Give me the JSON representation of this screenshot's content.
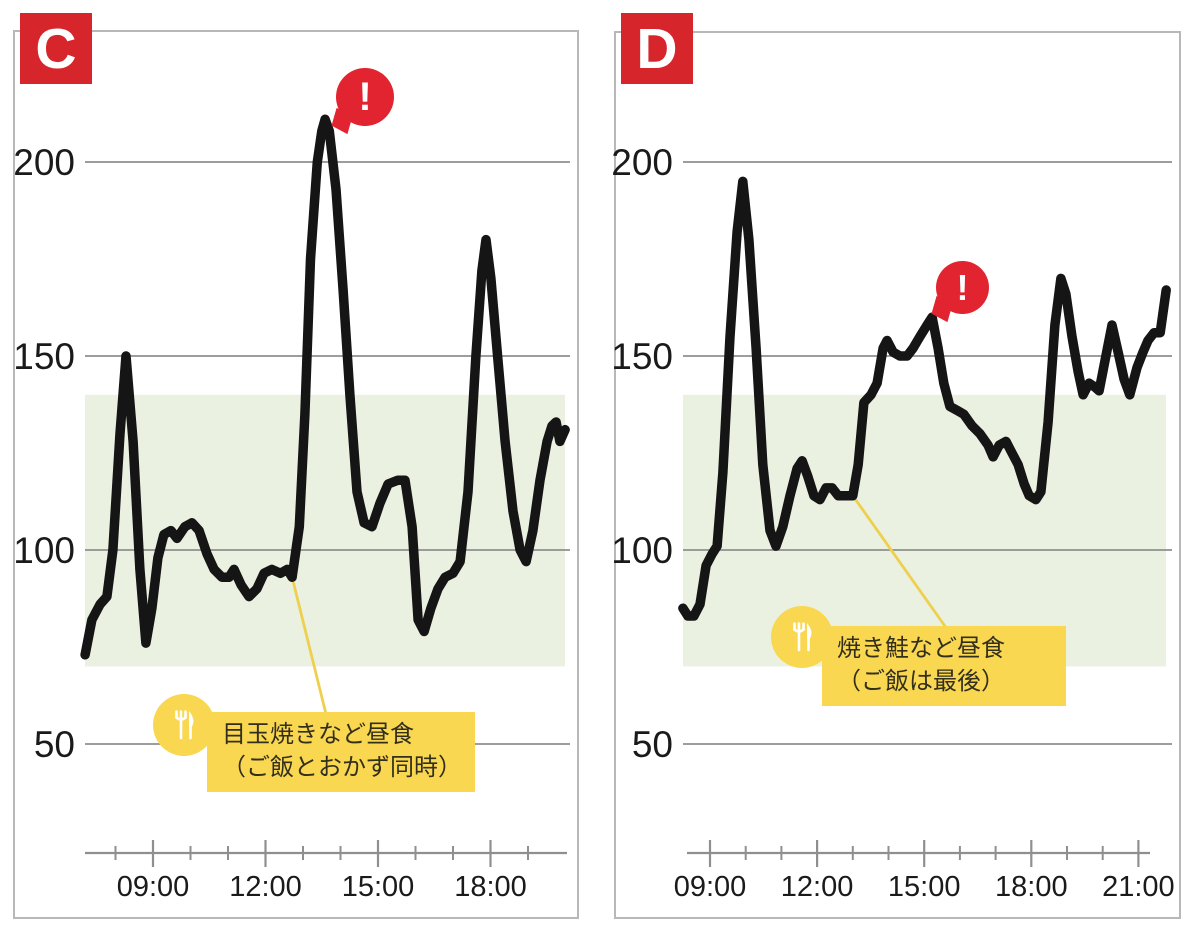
{
  "charts": [
    {
      "badge": "C",
      "alert_glyph": "!",
      "annotation": {
        "icon": "fork-knife-icon",
        "line1": "目玉焼きなど昼食",
        "line2": "（ご飯とおかず同時）"
      }
    },
    {
      "badge": "D",
      "alert_glyph": "!",
      "annotation": {
        "icon": "fork-knife-icon",
        "line1": "焼き鮭など昼食",
        "line2": "（ご飯は最後）"
      }
    }
  ],
  "colors": {
    "badge_red": "#d7252c",
    "alert_red": "#e12430",
    "line": "#151515",
    "grid": "#8f8f8f",
    "axis": "#8f8f8f",
    "band_green": "#eaf1e1",
    "annotation_yellow": "#f9d750",
    "connector_yellow": "#eed04e",
    "panel_border": "#b8b8b8",
    "text": "#1a1a1a"
  },
  "chart_data": [
    {
      "type": "line",
      "title": "C",
      "xlabel": "",
      "ylabel": "",
      "grid": "horizontal",
      "legend": "none",
      "y_ticks": [
        200,
        150,
        100,
        50
      ],
      "ylim": [
        38,
        222
      ],
      "xlim": [
        7.2,
        20.0
      ],
      "x_tick_labels": [
        "09:00",
        "12:00",
        "15:00",
        "18:00"
      ],
      "x_major_ticks": [
        9,
        12,
        15,
        18
      ],
      "x_minor_ticks": [
        8,
        10,
        11,
        13,
        14,
        16,
        17,
        19
      ],
      "normal_band": [
        70,
        140
      ],
      "series": [
        {
          "name": "glucose",
          "points": [
            [
              7.19,
              73
            ],
            [
              7.37,
              82
            ],
            [
              7.59,
              86
            ],
            [
              7.77,
              88
            ],
            [
              7.93,
              100
            ],
            [
              8.12,
              130
            ],
            [
              8.28,
              150
            ],
            [
              8.47,
              128
            ],
            [
              8.65,
              95
            ],
            [
              8.81,
              76
            ],
            [
              8.97,
              85
            ],
            [
              9.13,
              98
            ],
            [
              9.29,
              104
            ],
            [
              9.48,
              105
            ],
            [
              9.64,
              103
            ],
            [
              9.85,
              106
            ],
            [
              10.04,
              107
            ],
            [
              10.23,
              105
            ],
            [
              10.44,
              99
            ],
            [
              10.63,
              95
            ],
            [
              10.84,
              93
            ],
            [
              11.03,
              93
            ],
            [
              11.16,
              95
            ],
            [
              11.35,
              91
            ],
            [
              11.56,
              88
            ],
            [
              11.77,
              90
            ],
            [
              11.96,
              94
            ],
            [
              12.17,
              95
            ],
            [
              12.4,
              94
            ],
            [
              12.58,
              95
            ],
            [
              12.71,
              93
            ],
            [
              12.9,
              106
            ],
            [
              13.05,
              135
            ],
            [
              13.2,
              175
            ],
            [
              13.38,
              200
            ],
            [
              13.5,
              208
            ],
            [
              13.59,
              211
            ],
            [
              13.7,
              208
            ],
            [
              13.88,
              193
            ],
            [
              14.07,
              167
            ],
            [
              14.25,
              140
            ],
            [
              14.44,
              115
            ],
            [
              14.63,
              107
            ],
            [
              14.84,
              106
            ],
            [
              15.05,
              112
            ],
            [
              15.27,
              117
            ],
            [
              15.53,
              118
            ],
            [
              15.72,
              118
            ],
            [
              15.91,
              106
            ],
            [
              16.07,
              82
            ],
            [
              16.23,
              79
            ],
            [
              16.41,
              85
            ],
            [
              16.6,
              90
            ],
            [
              16.79,
              93
            ],
            [
              17.0,
              94
            ],
            [
              17.19,
              97
            ],
            [
              17.4,
              115
            ],
            [
              17.61,
              150
            ],
            [
              17.77,
              172
            ],
            [
              17.88,
              180
            ],
            [
              18.01,
              170
            ],
            [
              18.17,
              152
            ],
            [
              18.39,
              128
            ],
            [
              18.6,
              110
            ],
            [
              18.79,
              100
            ],
            [
              18.95,
              97
            ],
            [
              19.13,
              105
            ],
            [
              19.32,
              118
            ],
            [
              19.51,
              128
            ],
            [
              19.64,
              132
            ],
            [
              19.75,
              133
            ],
            [
              19.85,
              128
            ],
            [
              19.99,
              131
            ]
          ]
        }
      ],
      "annotations": [
        {
          "type": "meal",
          "text": "目玉焼きなど昼食（ご飯とおかず同時）",
          "connect": {
            "t": 12.71,
            "v": 93
          }
        },
        {
          "type": "alert",
          "glyph": "!",
          "at": {
            "t": 13.59,
            "v": 211
          }
        }
      ]
    },
    {
      "type": "line",
      "title": "D",
      "xlabel": "",
      "ylabel": "",
      "grid": "horizontal",
      "legend": "none",
      "y_ticks": [
        200,
        150,
        100,
        50
      ],
      "ylim": [
        38,
        222
      ],
      "xlim": [
        8.2,
        21.8
      ],
      "x_tick_labels": [
        "09:00",
        "12:00",
        "15:00",
        "18:00",
        "21:00"
      ],
      "x_major_ticks": [
        9,
        12,
        15,
        18,
        21
      ],
      "x_minor_ticks": [
        10,
        11,
        13,
        14,
        16,
        17,
        19,
        20
      ],
      "normal_band": [
        70,
        140
      ],
      "series": [
        {
          "name": "glucose",
          "points": [
            [
              8.24,
              85
            ],
            [
              8.38,
              83
            ],
            [
              8.55,
              83
            ],
            [
              8.72,
              86
            ],
            [
              8.89,
              96
            ],
            [
              9.06,
              99
            ],
            [
              9.2,
              101
            ],
            [
              9.36,
              120
            ],
            [
              9.56,
              155
            ],
            [
              9.76,
              182
            ],
            [
              9.92,
              195
            ],
            [
              10.09,
              180
            ],
            [
              10.29,
              152
            ],
            [
              10.48,
              122
            ],
            [
              10.68,
              105
            ],
            [
              10.85,
              101
            ],
            [
              11.04,
              106
            ],
            [
              11.24,
              114
            ],
            [
              11.44,
              121
            ],
            [
              11.58,
              123
            ],
            [
              11.74,
              119
            ],
            [
              11.91,
              114
            ],
            [
              12.08,
              113
            ],
            [
              12.25,
              116
            ],
            [
              12.42,
              116
            ],
            [
              12.59,
              114
            ],
            [
              12.78,
              114
            ],
            [
              13.0,
              114
            ],
            [
              13.15,
              122
            ],
            [
              13.31,
              138
            ],
            [
              13.51,
              140
            ],
            [
              13.68,
              143
            ],
            [
              13.85,
              152
            ],
            [
              13.96,
              154
            ],
            [
              14.13,
              151
            ],
            [
              14.32,
              150
            ],
            [
              14.52,
              150
            ],
            [
              14.69,
              152
            ],
            [
              14.88,
              155
            ],
            [
              15.08,
              158
            ],
            [
              15.22,
              160
            ],
            [
              15.39,
              152
            ],
            [
              15.55,
              143
            ],
            [
              15.72,
              137
            ],
            [
              15.92,
              136
            ],
            [
              16.11,
              135
            ],
            [
              16.34,
              132
            ],
            [
              16.56,
              130
            ],
            [
              16.79,
              127
            ],
            [
              16.93,
              124
            ],
            [
              17.1,
              127
            ],
            [
              17.29,
              128
            ],
            [
              17.46,
              125
            ],
            [
              17.63,
              122
            ],
            [
              17.8,
              117
            ],
            [
              17.94,
              114
            ],
            [
              18.13,
              113
            ],
            [
              18.27,
              115
            ],
            [
              18.47,
              133
            ],
            [
              18.66,
              158
            ],
            [
              18.83,
              170
            ],
            [
              18.97,
              166
            ],
            [
              19.14,
              155
            ],
            [
              19.31,
              146
            ],
            [
              19.45,
              140
            ],
            [
              19.62,
              143
            ],
            [
              19.78,
              142
            ],
            [
              19.9,
              141
            ],
            [
              20.09,
              150
            ],
            [
              20.26,
              158
            ],
            [
              20.43,
              151
            ],
            [
              20.6,
              144
            ],
            [
              20.76,
              140
            ],
            [
              20.96,
              147
            ],
            [
              21.13,
              151
            ],
            [
              21.27,
              154
            ],
            [
              21.44,
              156
            ],
            [
              21.61,
              156
            ],
            [
              21.78,
              167
            ]
          ]
        }
      ],
      "annotations": [
        {
          "type": "meal",
          "text": "焼き鮭など昼食（ご飯は最後）",
          "connect": {
            "t": 13.0,
            "v": 114
          }
        },
        {
          "type": "alert",
          "glyph": "!",
          "at": {
            "t": 15.22,
            "v": 160
          }
        }
      ]
    }
  ]
}
